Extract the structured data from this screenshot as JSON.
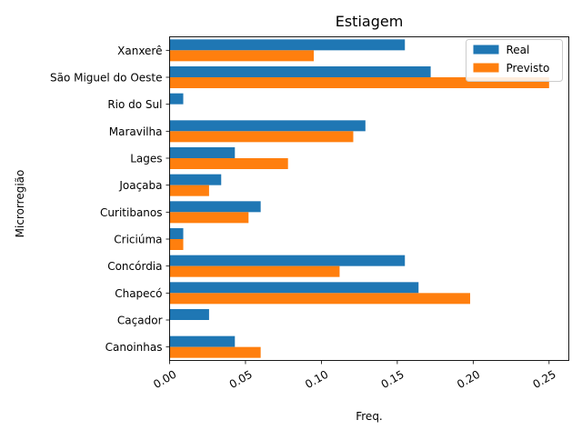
{
  "chart_data": {
    "type": "bar",
    "orientation": "horizontal",
    "title": "Estiagem",
    "xlabel": "Freq.",
    "ylabel": "Microrregião",
    "xlim": [
      0,
      0.263
    ],
    "xticks": [
      "0.00",
      "0.05",
      "0.10",
      "0.15",
      "0.20",
      "0.25"
    ],
    "xtick_values": [
      0,
      0.05,
      0.1,
      0.15,
      0.2,
      0.25
    ],
    "grid": false,
    "legend_position": "top-right",
    "categories": [
      "Canoinhas",
      "Caçador",
      "Chapecó",
      "Concórdia",
      "Criciúma",
      "Curitibanos",
      "Joaçaba",
      "Lages",
      "Maravilha",
      "Rio do Sul",
      "São Miguel do Oeste",
      "Xanxerê"
    ],
    "series": [
      {
        "name": "Real",
        "color": "#1f77b4",
        "values": [
          0.043,
          0.026,
          0.164,
          0.155,
          0.009,
          0.06,
          0.034,
          0.043,
          0.129,
          0.009,
          0.172,
          0.155
        ]
      },
      {
        "name": "Previsto",
        "color": "#ff7f0e",
        "values": [
          0.06,
          0.0,
          0.198,
          0.112,
          0.009,
          0.052,
          0.026,
          0.078,
          0.121,
          0.0,
          0.25,
          0.095
        ]
      }
    ]
  }
}
